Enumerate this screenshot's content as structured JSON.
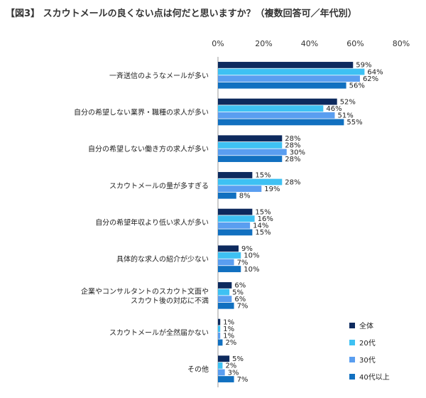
{
  "title": "【図3】 スカウトメールの良くない点は何だと思いますか？（複数回答可／年代別）",
  "chart_data": {
    "type": "bar",
    "orientation": "horizontal",
    "xlim": [
      0,
      80
    ],
    "ticks": [
      "0%",
      "20%",
      "40%",
      "60%",
      "80%"
    ],
    "tick_values": [
      0,
      20,
      40,
      60,
      80
    ],
    "grid": false,
    "legend_position": "bottom-right",
    "categories": [
      [
        "一斉送信のようなメールが多い"
      ],
      [
        "自分の希望しない業界・職種の求人が多い"
      ],
      [
        "自分の希望しない働き方の求人が多い"
      ],
      [
        "スカウトメールの量が多すぎる"
      ],
      [
        "自分の希望年収より低い求人が多い"
      ],
      [
        "具体的な求人の紹介が少ない"
      ],
      [
        "企業やコンサルタントのスカウト文面や",
        "スカウト後の対応に不満"
      ],
      [
        "スカウトメールが全然届かない"
      ],
      [
        "その他"
      ]
    ],
    "series": [
      {
        "name": "全体",
        "color": "#0d2a5e",
        "values": [
          59,
          52,
          28,
          15,
          15,
          9,
          6,
          1,
          5
        ]
      },
      {
        "name": "20代",
        "color": "#3ec1f3",
        "values": [
          64,
          46,
          28,
          28,
          16,
          10,
          5,
          1,
          2
        ]
      },
      {
        "name": "30代",
        "color": "#5a9ef0",
        "values": [
          62,
          51,
          30,
          19,
          14,
          7,
          6,
          1,
          3
        ]
      },
      {
        "name": "40代以上",
        "color": "#1170c0",
        "values": [
          56,
          55,
          28,
          8,
          15,
          10,
          7,
          2,
          7
        ]
      }
    ]
  }
}
